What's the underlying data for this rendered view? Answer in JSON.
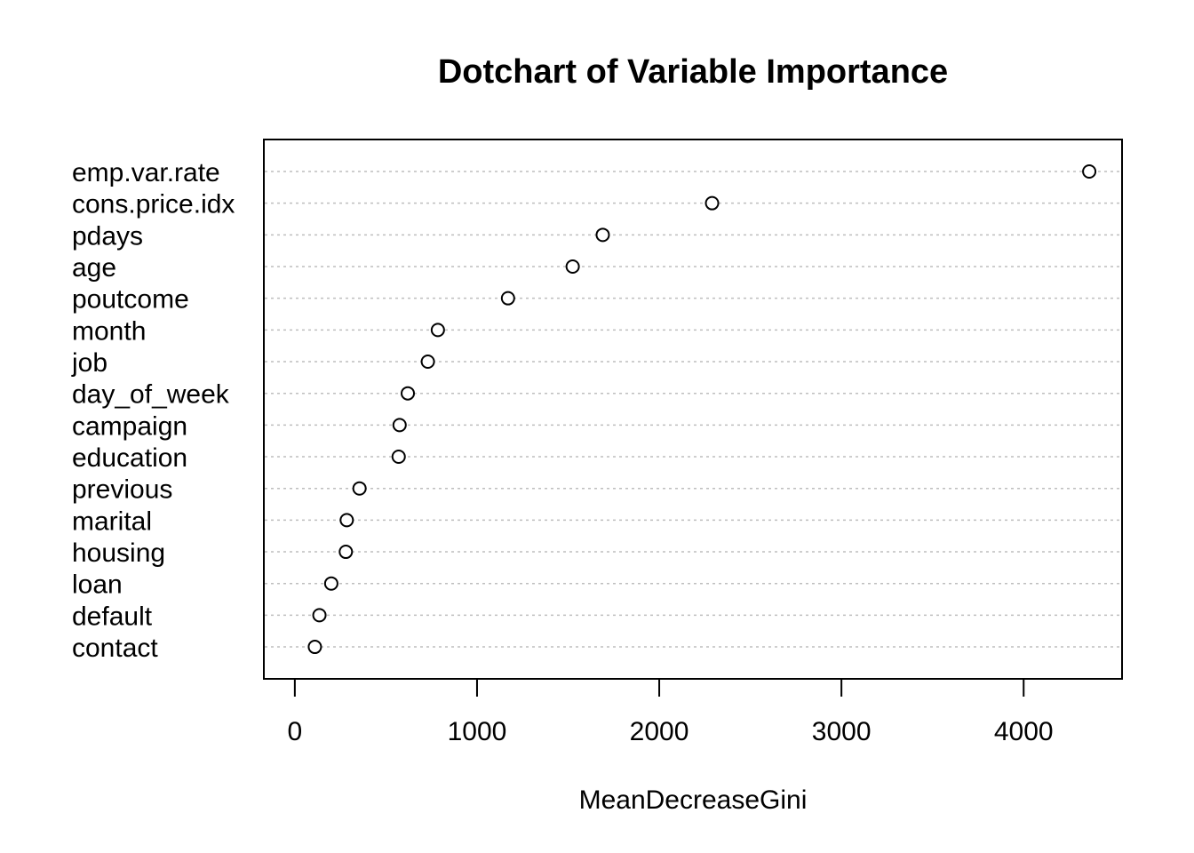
{
  "chart_data": {
    "type": "scatter",
    "subtype": "dotchart",
    "title": "Dotchart of Variable Importance",
    "xlabel": "MeanDecreaseGini",
    "ylabel": "",
    "xlim": [
      -170,
      4540
    ],
    "xticks": [
      0,
      1000,
      2000,
      3000,
      4000
    ],
    "grid": "dotted horizontal guide lines per category",
    "legend": "none",
    "categories": [
      "emp.var.rate",
      "cons.price.idx",
      "pdays",
      "age",
      "poutcome",
      "month",
      "job",
      "day_of_week",
      "campaign",
      "education",
      "previous",
      "marital",
      "housing",
      "loan",
      "default",
      "contact"
    ],
    "values": [
      4360,
      2290,
      1690,
      1525,
      1170,
      785,
      730,
      620,
      575,
      570,
      355,
      285,
      280,
      200,
      135,
      110
    ],
    "colors": {
      "marker_stroke": "#000000",
      "marker_fill": "#ffffff",
      "guide_line": "#bebebe",
      "frame": "#000000"
    }
  }
}
